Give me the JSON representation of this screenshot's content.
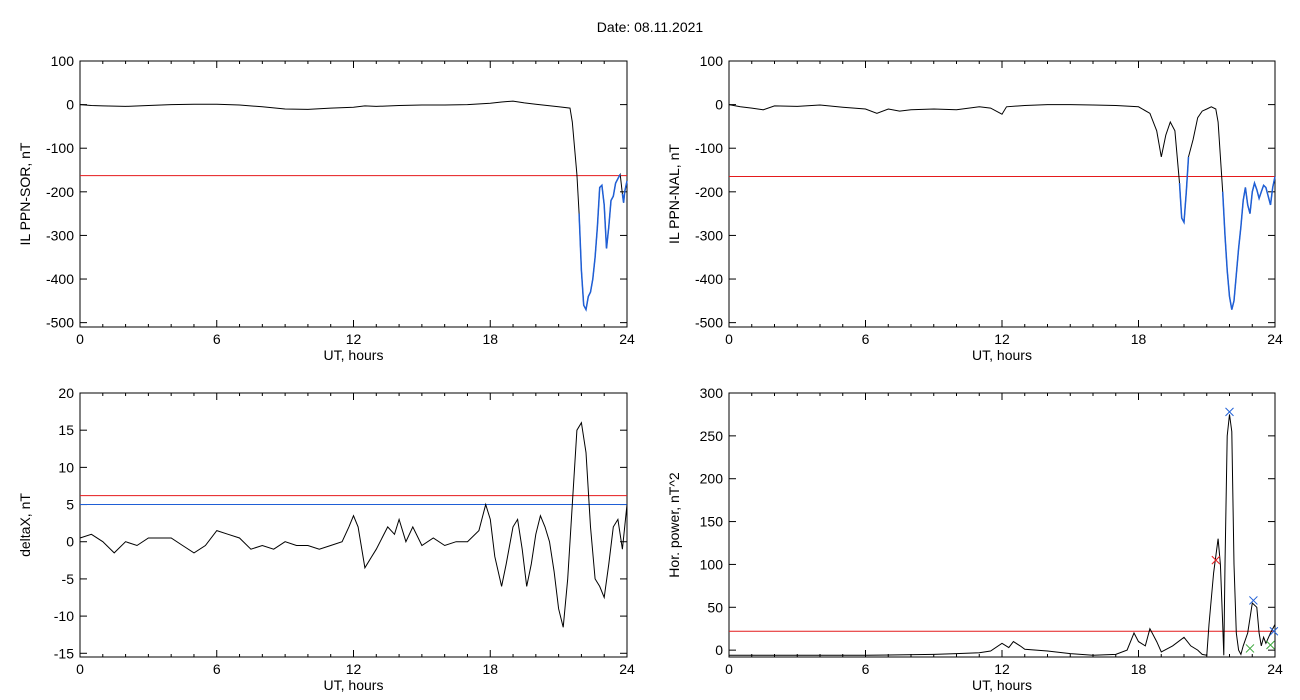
{
  "figure": {
    "title": "Date:  08.11.2021"
  },
  "colors": {
    "trace": "#000000",
    "threshold_red": "#e41a1c",
    "threshold_blue": "#1f5fd6",
    "highlight": "#1f5fd6",
    "marker_blue": "#1f5fd6",
    "marker_red": "#e41a1c",
    "marker_green": "#3aa63a"
  },
  "chart_data": [
    {
      "id": "il-sor",
      "type": "line",
      "xlabel": "UT, hours",
      "ylabel": "IL PPN-SOR, nT",
      "xlim": [
        0,
        24
      ],
      "ylim": [
        -510,
        100
      ],
      "xticks": [
        0,
        6,
        12,
        18,
        24
      ],
      "yticks": [
        100,
        0,
        -100,
        -200,
        -300,
        -400,
        -500
      ],
      "threshold": {
        "value": -163,
        "color": "red"
      },
      "highlight_below_threshold": true,
      "series": [
        {
          "values": [
            [
              0,
              0
            ],
            [
              0.5,
              -2
            ],
            [
              1,
              -3
            ],
            [
              2,
              -4
            ],
            [
              3,
              -2
            ],
            [
              4,
              0
            ],
            [
              5,
              1
            ],
            [
              6,
              1
            ],
            [
              7,
              -1
            ],
            [
              8,
              -5
            ],
            [
              9,
              -10
            ],
            [
              10,
              -11
            ],
            [
              11,
              -8
            ],
            [
              12,
              -6
            ],
            [
              12.5,
              -3
            ],
            [
              13,
              -4
            ],
            [
              14,
              -2
            ],
            [
              15,
              -1
            ],
            [
              16,
              -1
            ],
            [
              17,
              0
            ],
            [
              18,
              3
            ],
            [
              18.5,
              6
            ],
            [
              19,
              8
            ],
            [
              19.5,
              4
            ],
            [
              20,
              1
            ],
            [
              20.5,
              -2
            ],
            [
              21,
              -5
            ],
            [
              21.5,
              -8
            ],
            [
              21.6,
              -40
            ],
            [
              21.7,
              -100
            ],
            [
              21.8,
              -160
            ],
            [
              21.9,
              -250
            ],
            [
              22,
              -380
            ],
            [
              22.1,
              -460
            ],
            [
              22.2,
              -470
            ],
            [
              22.3,
              -440
            ],
            [
              22.4,
              -430
            ],
            [
              22.5,
              -400
            ],
            [
              22.6,
              -350
            ],
            [
              22.7,
              -280
            ],
            [
              22.8,
              -190
            ],
            [
              22.9,
              -185
            ],
            [
              23,
              -230
            ],
            [
              23.1,
              -330
            ],
            [
              23.2,
              -280
            ],
            [
              23.3,
              -220
            ],
            [
              23.4,
              -210
            ],
            [
              23.5,
              -180
            ],
            [
              23.6,
              -170
            ],
            [
              23.7,
              -160
            ],
            [
              23.8,
              -205
            ],
            [
              23.85,
              -225
            ],
            [
              23.9,
              -200
            ],
            [
              24,
              -175
            ]
          ]
        }
      ]
    },
    {
      "id": "il-nal",
      "type": "line",
      "xlabel": "UT, hours",
      "ylabel": "IL PPN-NAL, nT",
      "xlim": [
        0,
        24
      ],
      "ylim": [
        -510,
        100
      ],
      "xticks": [
        0,
        6,
        12,
        18,
        24
      ],
      "yticks": [
        100,
        0,
        -100,
        -200,
        -300,
        -400,
        -500
      ],
      "threshold": {
        "value": -165,
        "color": "red"
      },
      "highlight_below_threshold": true,
      "series": [
        {
          "values": [
            [
              0,
              0
            ],
            [
              0.5,
              -5
            ],
            [
              1,
              -8
            ],
            [
              1.5,
              -12
            ],
            [
              2,
              -3
            ],
            [
              3,
              -4
            ],
            [
              4,
              -1
            ],
            [
              5,
              -6
            ],
            [
              6,
              -10
            ],
            [
              6.5,
              -20
            ],
            [
              7,
              -10
            ],
            [
              7.5,
              -15
            ],
            [
              8,
              -12
            ],
            [
              9,
              -10
            ],
            [
              10,
              -12
            ],
            [
              11,
              -5
            ],
            [
              11.5,
              -8
            ],
            [
              12,
              -22
            ],
            [
              12.2,
              -5
            ],
            [
              13,
              -2
            ],
            [
              14,
              0
            ],
            [
              15,
              0
            ],
            [
              16,
              -1
            ],
            [
              17,
              -2
            ],
            [
              18,
              -5
            ],
            [
              18.5,
              -20
            ],
            [
              18.8,
              -60
            ],
            [
              19,
              -120
            ],
            [
              19.2,
              -70
            ],
            [
              19.4,
              -40
            ],
            [
              19.6,
              -60
            ],
            [
              19.8,
              -180
            ],
            [
              19.9,
              -260
            ],
            [
              20,
              -270
            ],
            [
              20.1,
              -200
            ],
            [
              20.2,
              -120
            ],
            [
              20.4,
              -80
            ],
            [
              20.6,
              -30
            ],
            [
              20.8,
              -15
            ],
            [
              21,
              -10
            ],
            [
              21.2,
              -5
            ],
            [
              21.4,
              -10
            ],
            [
              21.5,
              -40
            ],
            [
              21.6,
              -120
            ],
            [
              21.7,
              -200
            ],
            [
              21.8,
              -300
            ],
            [
              21.9,
              -380
            ],
            [
              22,
              -440
            ],
            [
              22.1,
              -470
            ],
            [
              22.2,
              -450
            ],
            [
              22.3,
              -390
            ],
            [
              22.4,
              -330
            ],
            [
              22.5,
              -280
            ],
            [
              22.6,
              -220
            ],
            [
              22.7,
              -190
            ],
            [
              22.8,
              -230
            ],
            [
              22.9,
              -250
            ],
            [
              23,
              -200
            ],
            [
              23.1,
              -180
            ],
            [
              23.2,
              -195
            ],
            [
              23.3,
              -215
            ],
            [
              23.4,
              -200
            ],
            [
              23.5,
              -185
            ],
            [
              23.6,
              -190
            ],
            [
              23.7,
              -210
            ],
            [
              23.8,
              -230
            ],
            [
              23.9,
              -190
            ],
            [
              24,
              -165
            ]
          ]
        }
      ]
    },
    {
      "id": "deltax",
      "type": "line",
      "xlabel": "UT, hours",
      "ylabel": "deltaX, nT",
      "xlim": [
        0,
        24
      ],
      "ylim": [
        -15.5,
        20
      ],
      "xticks": [
        0,
        6,
        12,
        18,
        24
      ],
      "yticks": [
        20,
        15,
        10,
        5,
        0,
        -5,
        -10,
        -15
      ],
      "threshold": {
        "value": 6.2,
        "color": "red"
      },
      "threshold2": {
        "value": 5.0,
        "color": "blue"
      },
      "highlight_below_threshold": false,
      "series": [
        {
          "values": [
            [
              0,
              0.5
            ],
            [
              0.5,
              1
            ],
            [
              1,
              0
            ],
            [
              1.5,
              -1.5
            ],
            [
              2,
              0
            ],
            [
              2.5,
              -0.5
            ],
            [
              3,
              0.5
            ],
            [
              4,
              0.5
            ],
            [
              4.5,
              -0.5
            ],
            [
              5,
              -1.5
            ],
            [
              5.5,
              -0.5
            ],
            [
              6,
              1.5
            ],
            [
              6.5,
              1
            ],
            [
              7,
              0.5
            ],
            [
              7.5,
              -1
            ],
            [
              8,
              -0.5
            ],
            [
              8.5,
              -1
            ],
            [
              9,
              0
            ],
            [
              9.5,
              -0.5
            ],
            [
              10,
              -0.5
            ],
            [
              10.5,
              -1
            ],
            [
              11,
              -0.5
            ],
            [
              11.5,
              0
            ],
            [
              11.8,
              2
            ],
            [
              12,
              3.5
            ],
            [
              12.2,
              2
            ],
            [
              12.5,
              -3.5
            ],
            [
              12.8,
              -2
            ],
            [
              13,
              -1
            ],
            [
              13.5,
              2
            ],
            [
              13.8,
              1
            ],
            [
              14,
              3
            ],
            [
              14.3,
              0
            ],
            [
              14.6,
              2
            ],
            [
              15,
              -0.5
            ],
            [
              15.5,
              0.5
            ],
            [
              16,
              -0.5
            ],
            [
              16.5,
              0
            ],
            [
              17,
              0
            ],
            [
              17.5,
              1.5
            ],
            [
              17.8,
              5
            ],
            [
              18,
              3
            ],
            [
              18.2,
              -2
            ],
            [
              18.5,
              -6
            ],
            [
              18.7,
              -3
            ],
            [
              19,
              2
            ],
            [
              19.2,
              3
            ],
            [
              19.4,
              -1
            ],
            [
              19.6,
              -6
            ],
            [
              19.8,
              -3
            ],
            [
              20,
              1
            ],
            [
              20.2,
              3.5
            ],
            [
              20.4,
              2
            ],
            [
              20.6,
              0
            ],
            [
              20.8,
              -4
            ],
            [
              21,
              -9
            ],
            [
              21.2,
              -11.5
            ],
            [
              21.4,
              -5
            ],
            [
              21.6,
              5
            ],
            [
              21.8,
              15
            ],
            [
              22,
              16
            ],
            [
              22.2,
              12
            ],
            [
              22.4,
              2
            ],
            [
              22.6,
              -5
            ],
            [
              22.8,
              -6
            ],
            [
              23,
              -7.5
            ],
            [
              23.2,
              -3
            ],
            [
              23.4,
              2
            ],
            [
              23.6,
              3
            ],
            [
              23.8,
              -1
            ],
            [
              24,
              5
            ]
          ]
        }
      ]
    },
    {
      "id": "hor-power",
      "type": "line",
      "xlabel": "UT, hours",
      "ylabel": "Hor. power, nT^2",
      "xlim": [
        0,
        24
      ],
      "ylim": [
        -8,
        300
      ],
      "xticks": [
        0,
        6,
        12,
        18,
        24
      ],
      "yticks": [
        300,
        250,
        200,
        150,
        100,
        50,
        0
      ],
      "threshold": {
        "value": 22,
        "color": "red"
      },
      "highlight_below_threshold": false,
      "series": [
        {
          "values": [
            [
              0,
              -6
            ],
            [
              3,
              -6
            ],
            [
              6,
              -6
            ],
            [
              9,
              -5
            ],
            [
              10,
              -4
            ],
            [
              11,
              -3
            ],
            [
              11.5,
              -1
            ],
            [
              12,
              8
            ],
            [
              12.3,
              3
            ],
            [
              12.5,
              10
            ],
            [
              12.8,
              5
            ],
            [
              13,
              1
            ],
            [
              14,
              -1
            ],
            [
              15,
              -4
            ],
            [
              16,
              -6
            ],
            [
              17,
              -5
            ],
            [
              17.5,
              0
            ],
            [
              17.8,
              20
            ],
            [
              18,
              10
            ],
            [
              18.3,
              5
            ],
            [
              18.5,
              25
            ],
            [
              18.8,
              10
            ],
            [
              19,
              -2
            ],
            [
              19.5,
              5
            ],
            [
              20,
              15
            ],
            [
              20.3,
              5
            ],
            [
              20.6,
              0
            ],
            [
              20.8,
              -5
            ],
            [
              21,
              -6
            ],
            [
              21.1,
              30
            ],
            [
              21.3,
              90
            ],
            [
              21.5,
              130
            ],
            [
              21.6,
              100
            ],
            [
              21.7,
              30
            ],
            [
              21.75,
              -6
            ],
            [
              21.8,
              100
            ],
            [
              21.9,
              250
            ],
            [
              22,
              275
            ],
            [
              22.1,
              255
            ],
            [
              22.2,
              100
            ],
            [
              22.3,
              20
            ],
            [
              22.4,
              0
            ],
            [
              22.5,
              -5
            ],
            [
              22.6,
              5
            ],
            [
              22.8,
              20
            ],
            [
              23,
              55
            ],
            [
              23.2,
              50
            ],
            [
              23.3,
              20
            ],
            [
              23.4,
              5
            ],
            [
              23.5,
              15
            ],
            [
              23.6,
              8
            ],
            [
              23.8,
              20
            ],
            [
              24,
              30
            ]
          ]
        }
      ],
      "markers": [
        {
          "x": 22.0,
          "y": 278,
          "color": "blue"
        },
        {
          "x": 21.4,
          "y": 105,
          "color": "red"
        },
        {
          "x": 23.05,
          "y": 58,
          "color": "blue"
        },
        {
          "x": 22.9,
          "y": 2,
          "color": "green"
        },
        {
          "x": 23.95,
          "y": 22,
          "color": "blue"
        },
        {
          "x": 23.8,
          "y": 6,
          "color": "green"
        }
      ]
    }
  ]
}
